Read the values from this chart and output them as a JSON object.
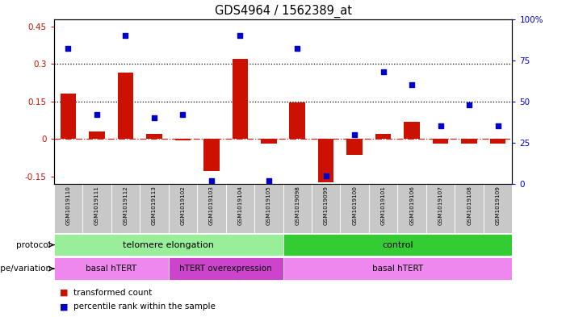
{
  "title": "GDS4964 / 1562389_at",
  "samples": [
    "GSM1019110",
    "GSM1019111",
    "GSM1019112",
    "GSM1019113",
    "GSM1019102",
    "GSM1019103",
    "GSM1019104",
    "GSM1019105",
    "GSM1019098",
    "GSM1019099",
    "GSM1019100",
    "GSM1019101",
    "GSM1019106",
    "GSM1019107",
    "GSM1019108",
    "GSM1019109"
  ],
  "bar_values": [
    0.18,
    0.03,
    0.265,
    0.02,
    -0.005,
    -0.13,
    0.32,
    -0.02,
    0.145,
    -0.175,
    -0.065,
    0.02,
    0.07,
    -0.02,
    -0.02,
    -0.02
  ],
  "dot_pct": [
    82,
    42,
    90,
    40,
    42,
    2,
    90,
    2,
    82,
    5,
    30,
    68,
    60,
    35,
    48,
    35
  ],
  "ylim_left": [
    -0.18,
    0.48
  ],
  "ylim_right": [
    0,
    100
  ],
  "yticks_left": [
    -0.15,
    0.0,
    0.15,
    0.3,
    0.45
  ],
  "yticks_right": [
    0,
    25,
    50,
    75,
    100
  ],
  "bar_color": "#cc1100",
  "dot_color": "#0000cc",
  "hline_dotted_values": [
    0.15,
    0.3
  ],
  "sample_bg_color": "#c8c8c8",
  "protocol_groups": [
    {
      "label": "telomere elongation",
      "start": 0,
      "end": 8,
      "color": "#99ee99"
    },
    {
      "label": "control",
      "start": 8,
      "end": 16,
      "color": "#33cc33"
    }
  ],
  "genotype_groups": [
    {
      "label": "basal hTERT",
      "start": 0,
      "end": 4,
      "color": "#ee88ee"
    },
    {
      "label": "hTERT overexpression",
      "start": 4,
      "end": 8,
      "color": "#cc44cc"
    },
    {
      "label": "basal hTERT",
      "start": 8,
      "end": 16,
      "color": "#ee88ee"
    }
  ],
  "legend_items": [
    {
      "label": "transformed count",
      "color": "#cc1100"
    },
    {
      "label": "percentile rank within the sample",
      "color": "#0000cc"
    }
  ],
  "protocol_label": "protocol",
  "genotype_label": "genotype/variation"
}
